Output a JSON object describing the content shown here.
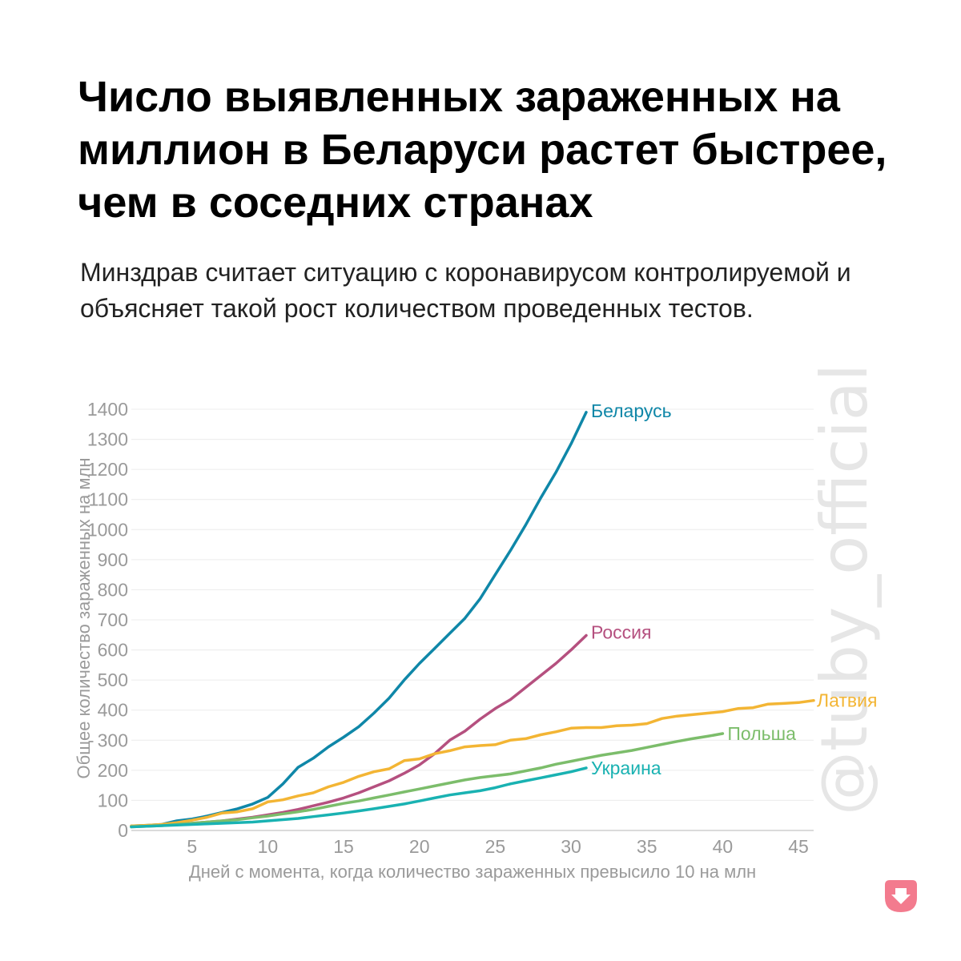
{
  "header": {
    "title": "Число выявленных зараженных на миллион в Беларуси растет быстрее, чем в соседних странах",
    "subtitle": "Минздрав считает ситуацию с коронавирусом контролируемой и объясняет такой рост количеством проведенных тестов."
  },
  "watermark": "@tuby_official",
  "logo": "tutby-logo-icon",
  "chart_data": {
    "type": "line",
    "title": "Число выявленных зараженных на миллион в Беларуси растет быстрее, чем в соседних странах",
    "subtitle": "Минздрав считает ситуацию с коронавирусом контролируемой и объясняет такой рост количеством проведенных тестов.",
    "xlabel": "Дней с момента, когда количество зараженных превысило 10 на млн",
    "ylabel": "Общее количество зараженных на млн",
    "xlim": [
      1,
      46
    ],
    "ylim": [
      0,
      1400
    ],
    "xticks": [
      5,
      10,
      15,
      20,
      25,
      30,
      35,
      40,
      45
    ],
    "yticks": [
      0,
      100,
      200,
      300,
      400,
      500,
      600,
      700,
      800,
      900,
      1000,
      1100,
      1200,
      1300,
      1400
    ],
    "grid": "horizontal",
    "legend": "inline labels at line ends",
    "series": [
      {
        "name": "Беларусь",
        "color": "#0f87a8",
        "x": [
          1,
          2,
          3,
          4,
          5,
          6,
          7,
          8,
          9,
          10,
          11,
          12,
          13,
          14,
          15,
          16,
          17,
          18,
          19,
          20,
          21,
          22,
          23,
          24,
          25,
          26,
          27,
          28,
          29,
          30,
          31
        ],
        "y": [
          15,
          17,
          20,
          32,
          38,
          48,
          60,
          72,
          88,
          110,
          155,
          210,
          240,
          278,
          310,
          345,
          390,
          440,
          500,
          555,
          605,
          655,
          705,
          770,
          850,
          930,
          1015,
          1105,
          1190,
          1285,
          1390
        ]
      },
      {
        "name": "Россия",
        "color": "#b5507f",
        "x": [
          1,
          2,
          3,
          4,
          5,
          6,
          7,
          8,
          9,
          10,
          11,
          12,
          13,
          14,
          15,
          16,
          17,
          18,
          19,
          20,
          21,
          22,
          23,
          24,
          25,
          26,
          27,
          28,
          29,
          30,
          31
        ],
        "y": [
          14,
          16,
          18,
          20,
          24,
          28,
          32,
          38,
          44,
          52,
          60,
          70,
          82,
          94,
          108,
          125,
          145,
          165,
          190,
          218,
          255,
          300,
          330,
          370,
          405,
          435,
          475,
          515,
          555,
          600,
          648
        ]
      },
      {
        "name": "Латвия",
        "color": "#f3b534",
        "x": [
          1,
          2,
          3,
          4,
          5,
          6,
          7,
          8,
          9,
          10,
          11,
          12,
          13,
          14,
          15,
          16,
          17,
          18,
          19,
          20,
          21,
          22,
          23,
          24,
          25,
          26,
          27,
          28,
          29,
          30,
          31,
          32,
          33,
          34,
          35,
          36,
          37,
          38,
          39,
          40,
          41,
          42,
          43,
          44,
          45,
          46
        ],
        "y": [
          15,
          17,
          20,
          26,
          34,
          44,
          58,
          62,
          72,
          95,
          102,
          115,
          125,
          145,
          160,
          180,
          195,
          205,
          232,
          238,
          255,
          265,
          278,
          282,
          285,
          300,
          305,
          318,
          328,
          340,
          342,
          342,
          348,
          350,
          355,
          372,
          380,
          385,
          390,
          395,
          405,
          408,
          420,
          422,
          425,
          432
        ]
      },
      {
        "name": "Польша",
        "color": "#7cbd6b",
        "x": [
          1,
          2,
          3,
          4,
          5,
          6,
          7,
          8,
          9,
          10,
          11,
          12,
          13,
          14,
          15,
          16,
          17,
          18,
          19,
          20,
          21,
          22,
          23,
          24,
          25,
          26,
          27,
          28,
          29,
          30,
          31,
          32,
          33,
          34,
          35,
          36,
          37,
          38,
          39,
          40
        ],
        "y": [
          12,
          14,
          16,
          20,
          24,
          28,
          32,
          36,
          42,
          48,
          55,
          62,
          70,
          80,
          90,
          98,
          108,
          118,
          128,
          138,
          148,
          158,
          168,
          176,
          182,
          188,
          198,
          208,
          220,
          230,
          240,
          250,
          258,
          266,
          276,
          286,
          296,
          305,
          313,
          322
        ]
      },
      {
        "name": "Украина",
        "color": "#19b2b2",
        "x": [
          1,
          2,
          3,
          4,
          5,
          6,
          7,
          8,
          9,
          10,
          11,
          12,
          13,
          14,
          15,
          16,
          17,
          18,
          19,
          20,
          21,
          22,
          23,
          24,
          25,
          26,
          27,
          28,
          29,
          30,
          31
        ],
        "y": [
          12,
          14,
          16,
          18,
          20,
          22,
          24,
          26,
          28,
          32,
          36,
          40,
          46,
          52,
          58,
          65,
          72,
          80,
          88,
          98,
          108,
          118,
          125,
          132,
          142,
          155,
          165,
          175,
          185,
          195,
          208
        ]
      }
    ]
  }
}
